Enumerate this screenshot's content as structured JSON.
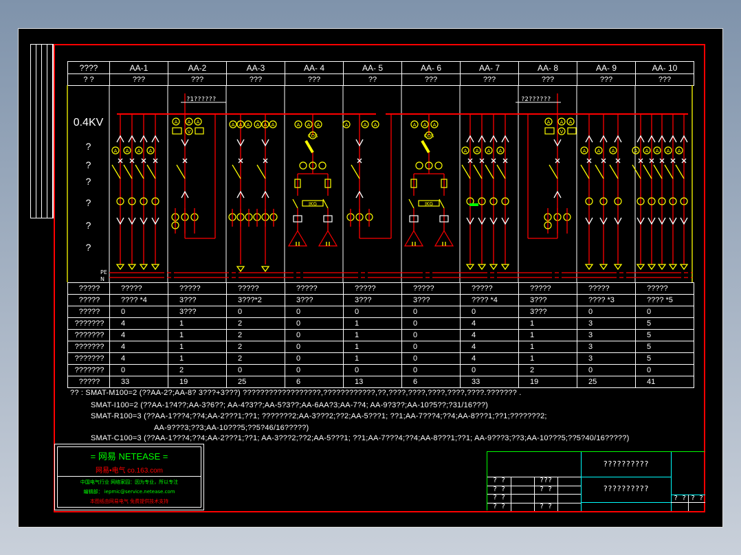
{
  "columns": [
    "????",
    "AA-1",
    "AA-2",
    "AA-3",
    "AA- 4",
    "AA- 5",
    "AA- 6",
    "AA- 7",
    "AA- 8",
    "AA- 9",
    "AA- 10"
  ],
  "subheader": [
    "? ?",
    "???",
    "???",
    "???",
    "???",
    "??",
    "???",
    "???",
    "???",
    "???",
    "???"
  ],
  "left_labels": [
    "0.4KV",
    "?",
    "?",
    "?",
    "?",
    "?",
    "?"
  ],
  "bus_labels": {
    "pe": "PE",
    "n": "N"
  },
  "incomer_labels": {
    "aa2": "?1??????",
    "aa8": "?2??????"
  },
  "capacitor_label": "JKG",
  "meter_labels": {
    "ammeter": "A",
    "voltmeter": "V",
    "cos": "COS"
  },
  "rows": [
    {
      "label": "?????",
      "values": [
        "?????",
        "?????",
        "?????",
        "?????",
        "?????",
        "?????",
        "?????",
        "?????",
        "?????",
        "?????"
      ]
    },
    {
      "label": "?????",
      "values": [
        "???? *4",
        "3???",
        "3???*2",
        "3???",
        "3???",
        "3???",
        "???? *4",
        "3???",
        "???? *3",
        "???? *5"
      ]
    },
    {
      "label": "?????",
      "values": [
        "0",
        "3???",
        "0",
        "0",
        "0",
        "0",
        "0",
        "3???",
        "0",
        "0"
      ]
    },
    {
      "label": "???????",
      "values": [
        "4",
        "1",
        "2",
        "0",
        "1",
        "0",
        "4",
        "1",
        "3",
        "5"
      ]
    },
    {
      "label": "???????",
      "values": [
        "4",
        "1",
        "2",
        "0",
        "1",
        "0",
        "4",
        "1",
        "3",
        "5"
      ]
    },
    {
      "label": "???????",
      "values": [
        "4",
        "1",
        "2",
        "0",
        "1",
        "0",
        "4",
        "1",
        "3",
        "5"
      ]
    },
    {
      "label": "???????",
      "values": [
        "4",
        "1",
        "2",
        "0",
        "1",
        "0",
        "4",
        "1",
        "3",
        "5"
      ]
    },
    {
      "label": "???????",
      "values": [
        "0",
        "2",
        "0",
        "0",
        "0",
        "0",
        "0",
        "2",
        "0",
        "0"
      ]
    },
    {
      "label": "?????",
      "values": [
        "33",
        "19",
        "25",
        "6",
        "13",
        "6",
        "33",
        "19",
        "25",
        "41"
      ]
    }
  ],
  "notes": [
    "?? : SMAT-M100=2 (??AA-2?;AA-8? 3???+3???)      ??????????????????,????????????,??,????,????,????,????,????.??????? .",
    "SMAT-I100=2 (??AA-1?4??;AA-3?6??;  AA-4?3??;AA-5?3??;AA-6AA?3;AA-7?4;  AA-9?3??;AA-10?5??;?31/16???)",
    "SMAT-R100=3 (??AA-1???4;??4;AA-2???1;??1;   ???????2;AA-3???2;??2;AA-5???1;    ??1;AA-7???4;??4;AA-8???1;??1;???????2;",
    "AA-9???3;??3;AA-10???5;??5?46/16?????)",
    "SMAT-C100=3 (??AA-1???4;??4;AA-2???1;??1;  AA-3???2;??2;AA-5???1;  ??1;AA-7???4;??4;AA-8???1;??1;   AA-9???3;??3;AA-10???5;??5?40/16?????)"
  ],
  "logo": {
    "title": "= 网易  NETEASE =",
    "subtitle": "网易•电气   co.163.com",
    "line1": "中国电气行业 网络家园：因为专业，所以专注",
    "line2": "编辑部： iepmic@service.netease.com",
    "line3": "本图纸由网易电气 免费提供技术支持"
  },
  "title_block": {
    "title1": "??????????",
    "title2": "??????????",
    "cells": [
      [
        "? ?",
        "???"
      ],
      [
        "? ?",
        "? ?"
      ],
      [
        "? ?",
        ""
      ],
      [
        "? ?",
        "? ?"
      ]
    ],
    "right": [
      "? ?",
      "? ?"
    ]
  },
  "colors": {
    "frame": "#ff0000",
    "bus": "#ff0000",
    "symbols": "#ffff00",
    "grid": "#ffffff",
    "logo_green": "#00ff00",
    "title_cyan": "#00ffff"
  }
}
